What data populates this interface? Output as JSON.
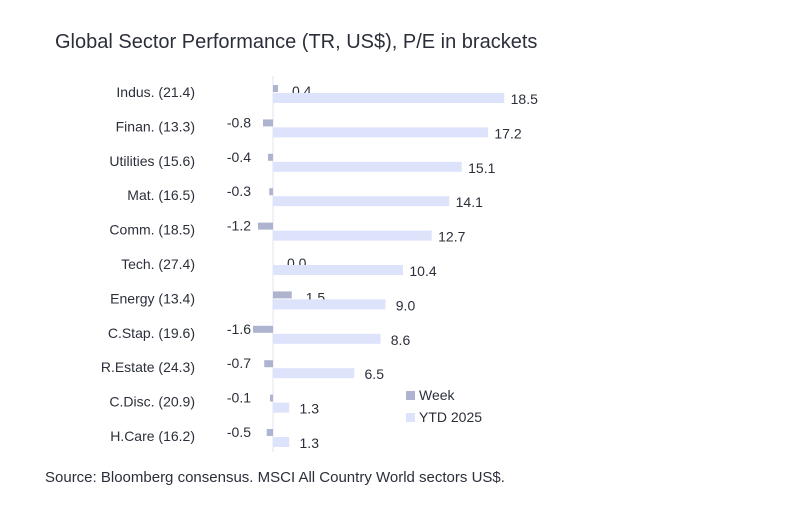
{
  "chart_data": {
    "type": "bar",
    "title": "Global Sector Performance (TR, US$), P/E in brackets",
    "categories": [
      "Indus. (21.4)",
      "Finan. (13.3)",
      "Utilities (15.6)",
      "Mat. (16.5)",
      "Comm. (18.5)",
      "Tech. (27.4)",
      "Energy (13.4)",
      "C.Stap. (19.6)",
      "R.Estate (24.3)",
      "C.Disc. (20.9)",
      "H.Care (16.2)"
    ],
    "series": [
      {
        "name": "Week",
        "values": [
          0.4,
          -0.8,
          -0.4,
          -0.3,
          -1.2,
          0.0,
          1.5,
          -1.6,
          -0.7,
          -0.1,
          -0.5
        ],
        "labels": [
          "0.4",
          "-0.8",
          "-0.4",
          "-0.3",
          "-1.2",
          "0.0",
          "1.5",
          "-1.6",
          "-0.7",
          "-0.1",
          "-0.5"
        ],
        "color": "#aeb3cf"
      },
      {
        "name": "YTD 2025",
        "values": [
          18.5,
          17.2,
          15.1,
          14.1,
          12.7,
          10.4,
          9.0,
          8.6,
          6.5,
          1.3,
          1.3
        ],
        "labels": [
          "18.5",
          "17.2",
          "15.1",
          "14.1",
          "12.7",
          "10.4",
          "9.0",
          "8.6",
          "6.5",
          "1.3",
          "1.3"
        ],
        "color": "#dde3fa"
      }
    ],
    "legend": [
      "Week",
      "YTD 2025"
    ],
    "legend_position": "bottom-right",
    "source": "Source: Bloomberg consensus. MSCI All Country World sectors US$."
  }
}
